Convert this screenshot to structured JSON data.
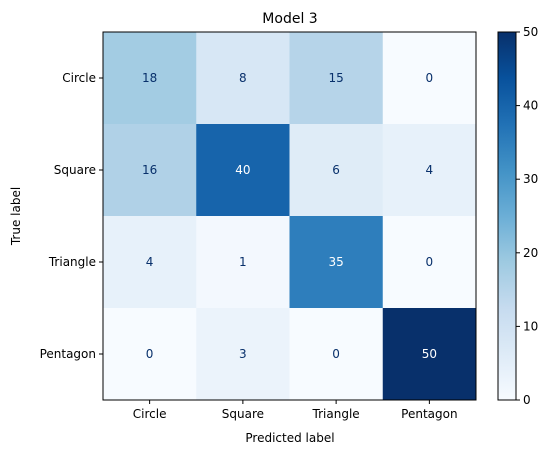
{
  "chart_data": {
    "type": "heatmap",
    "title": "Model 3",
    "xlabel": "Predicted label",
    "ylabel": "True label",
    "x_categories": [
      "Circle",
      "Square",
      "Triangle",
      "Pentagon"
    ],
    "y_categories": [
      "Circle",
      "Square",
      "Triangle",
      "Pentagon"
    ],
    "values": [
      [
        18,
        8,
        15,
        0
      ],
      [
        16,
        40,
        6,
        4
      ],
      [
        4,
        1,
        35,
        0
      ],
      [
        0,
        3,
        0,
        50
      ]
    ],
    "colormap": "Blues",
    "colorbar": {
      "min": 0,
      "max": 50,
      "ticks": [
        0,
        10,
        20,
        30,
        40,
        50
      ]
    },
    "grid": false
  }
}
